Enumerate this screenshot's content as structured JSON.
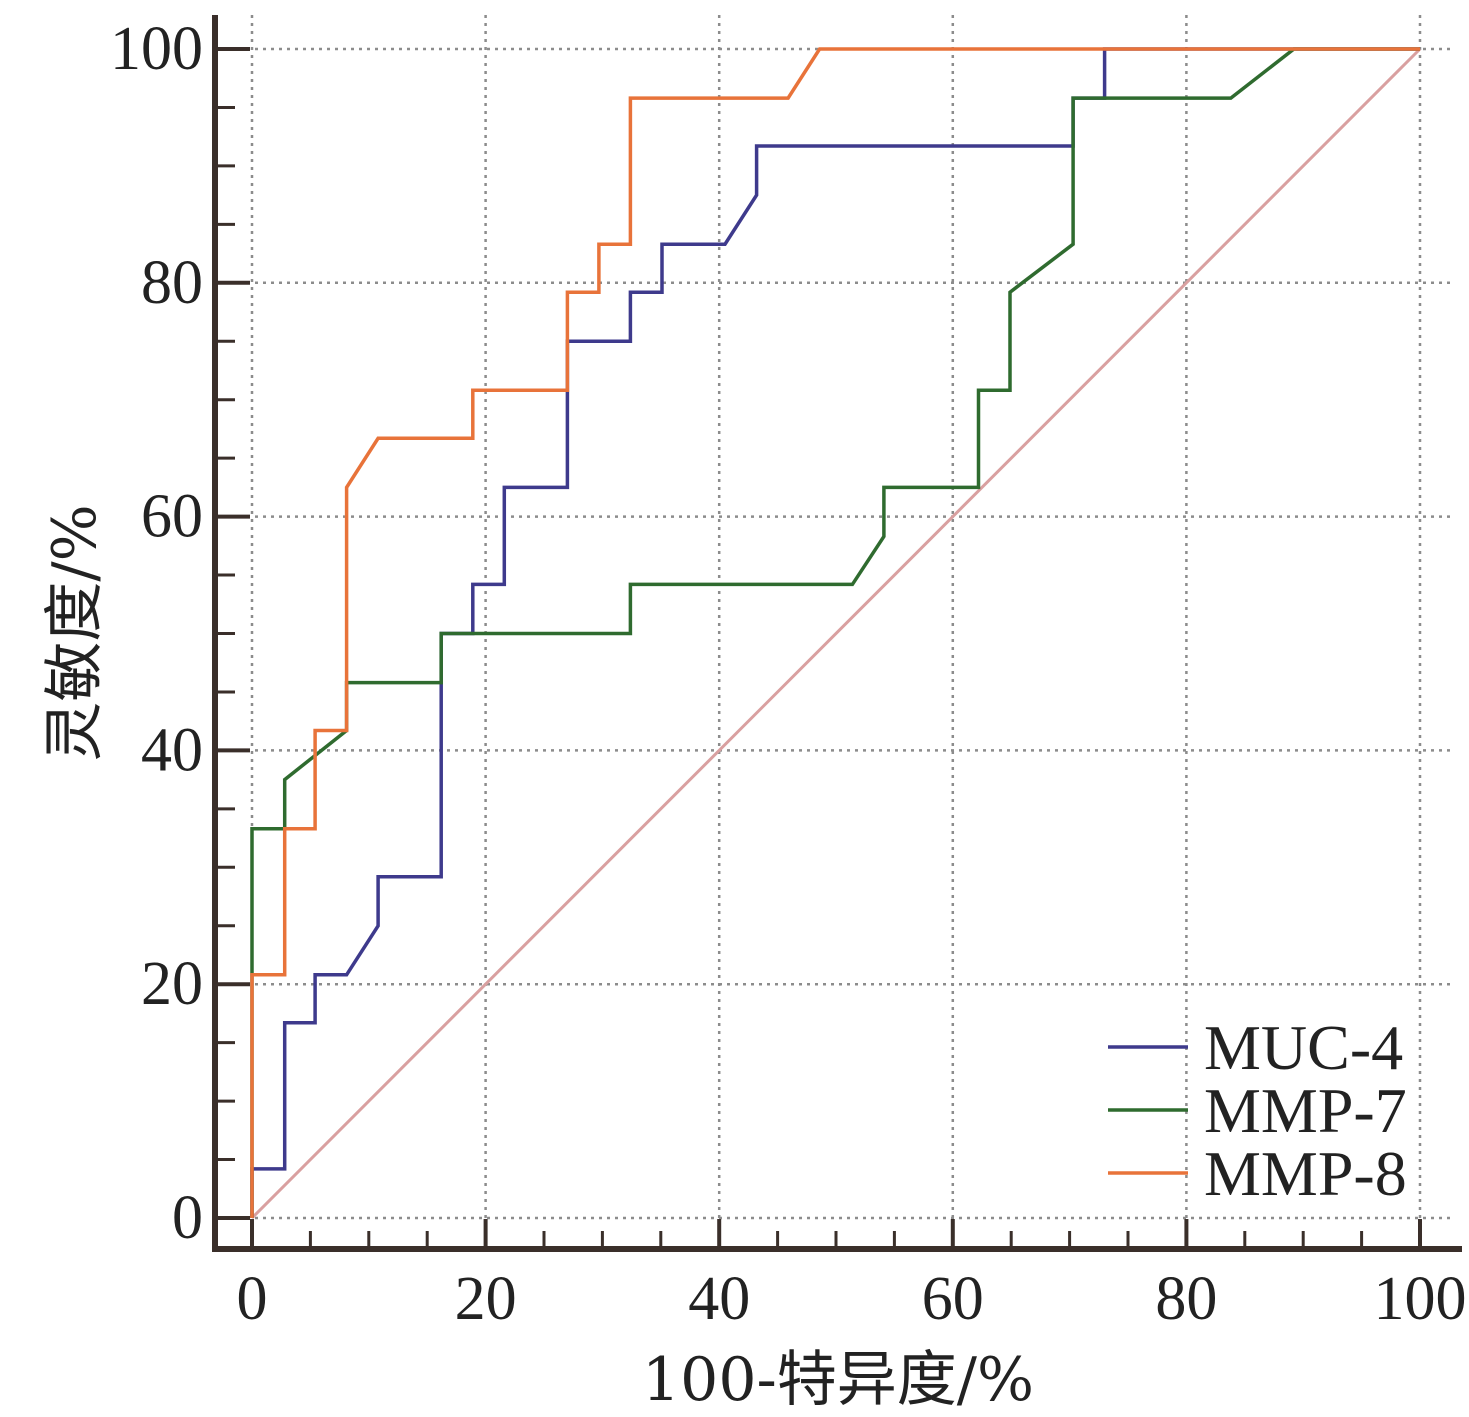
{
  "chart_data": {
    "type": "line",
    "title": "",
    "xlabel": "100-特异度/%",
    "ylabel": "灵敏度/%",
    "xlim": [
      0,
      100
    ],
    "ylim": [
      0,
      100
    ],
    "x_ticks": [
      0,
      20,
      40,
      60,
      80,
      100
    ],
    "y_ticks": [
      0,
      20,
      40,
      60,
      80,
      100
    ],
    "grid": true,
    "legend_position": "bottom-right",
    "series": [
      {
        "name": "MUC-4",
        "color": "#3e3a8c",
        "points": [
          [
            0,
            0
          ],
          [
            0,
            4.2
          ],
          [
            2.8,
            4.2
          ],
          [
            2.8,
            16.7
          ],
          [
            5.4,
            16.7
          ],
          [
            5.4,
            20.8
          ],
          [
            8.1,
            20.8
          ],
          [
            10.8,
            25.0
          ],
          [
            10.8,
            29.2
          ],
          [
            16.2,
            29.2
          ],
          [
            16.2,
            50.0
          ],
          [
            18.9,
            50.0
          ],
          [
            18.9,
            54.2
          ],
          [
            21.6,
            54.2
          ],
          [
            21.6,
            62.5
          ],
          [
            27.0,
            62.5
          ],
          [
            27.0,
            75.0
          ],
          [
            32.4,
            75.0
          ],
          [
            32.4,
            79.2
          ],
          [
            35.1,
            79.2
          ],
          [
            35.1,
            83.3
          ],
          [
            40.5,
            83.3
          ],
          [
            43.2,
            87.5
          ],
          [
            43.2,
            91.7
          ],
          [
            70.3,
            91.7
          ],
          [
            70.3,
            95.8
          ],
          [
            73.0,
            95.8
          ],
          [
            73.0,
            100
          ],
          [
            100,
            100
          ]
        ]
      },
      {
        "name": "MMP-7",
        "color": "#2f6b2f",
        "points": [
          [
            0,
            0
          ],
          [
            0,
            33.3
          ],
          [
            2.8,
            33.3
          ],
          [
            2.8,
            37.5
          ],
          [
            8.1,
            41.7
          ],
          [
            8.1,
            45.8
          ],
          [
            16.2,
            45.8
          ],
          [
            16.2,
            50.0
          ],
          [
            32.4,
            50.0
          ],
          [
            32.4,
            54.2
          ],
          [
            51.4,
            54.2
          ],
          [
            54.1,
            58.3
          ],
          [
            54.1,
            62.5
          ],
          [
            62.2,
            62.5
          ],
          [
            62.2,
            70.8
          ],
          [
            64.9,
            70.8
          ],
          [
            64.9,
            79.2
          ],
          [
            70.3,
            83.3
          ],
          [
            70.3,
            95.8
          ],
          [
            83.8,
            95.8
          ],
          [
            89.2,
            100
          ],
          [
            100,
            100
          ]
        ]
      },
      {
        "name": "MMP-8",
        "color": "#e8733a",
        "points": [
          [
            0,
            0
          ],
          [
            0,
            20.8
          ],
          [
            2.8,
            20.8
          ],
          [
            2.8,
            33.3
          ],
          [
            5.4,
            33.3
          ],
          [
            5.4,
            41.7
          ],
          [
            8.1,
            41.7
          ],
          [
            8.1,
            62.5
          ],
          [
            10.8,
            66.7
          ],
          [
            18.9,
            66.7
          ],
          [
            18.9,
            70.8
          ],
          [
            27.0,
            70.8
          ],
          [
            27.0,
            79.2
          ],
          [
            29.7,
            79.2
          ],
          [
            29.7,
            83.3
          ],
          [
            32.4,
            83.3
          ],
          [
            32.4,
            95.8
          ],
          [
            45.9,
            95.8
          ],
          [
            48.6,
            100
          ],
          [
            100,
            100
          ]
        ]
      },
      {
        "color": "#d9a0a0",
        "reference": true,
        "points": [
          [
            0,
            0
          ],
          [
            100,
            100
          ]
        ]
      }
    ]
  }
}
